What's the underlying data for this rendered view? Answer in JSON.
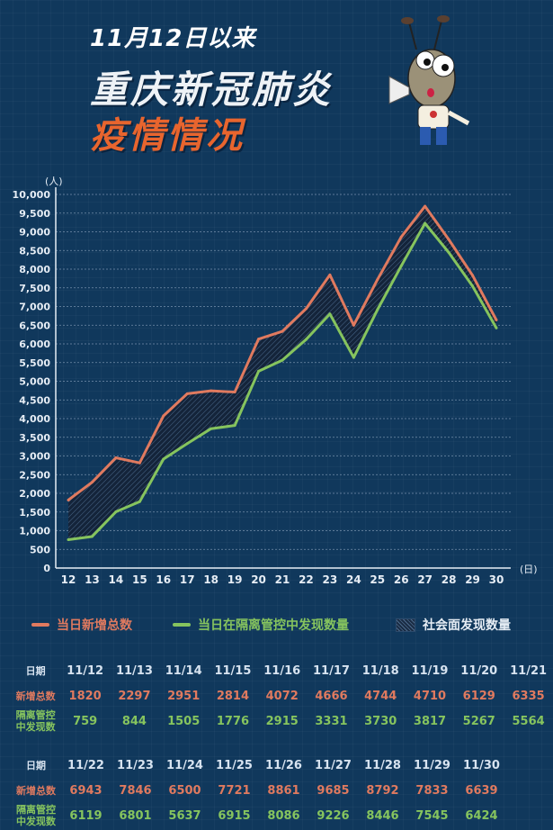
{
  "title": {
    "line1": "11月12日以来",
    "line2": "重庆新冠肺炎",
    "line3": "疫情情况"
  },
  "mascot_icon": "ant-mascot-with-megaphone",
  "colors": {
    "background": "#10385c",
    "total": "#e07a5f",
    "isolated": "#86c45e",
    "title_accent": "#e8652e"
  },
  "chart_data": {
    "type": "line",
    "ylabel": "(人)",
    "xlabel": "(日)",
    "ylim": [
      0,
      10000
    ],
    "yticks": [
      "0",
      "500",
      "1,000",
      "1,500",
      "2,000",
      "2,500",
      "3,000",
      "3,500",
      "4,000",
      "4,500",
      "5,000",
      "5,500",
      "6,000",
      "6,500",
      "7,000",
      "7,500",
      "8,000",
      "8,500",
      "9,000",
      "9,500",
      "10,000"
    ],
    "x": [
      "12",
      "13",
      "14",
      "15",
      "16",
      "17",
      "18",
      "19",
      "20",
      "21",
      "22",
      "23",
      "24",
      "25",
      "26",
      "27",
      "28",
      "29",
      "30"
    ],
    "grid": true,
    "legend_position": "bottom",
    "series": [
      {
        "name": "当日新增总数",
        "color": "#e07a5f",
        "values": [
          1820,
          2297,
          2951,
          2814,
          4072,
          4666,
          4744,
          4710,
          6129,
          6335,
          6943,
          7846,
          6500,
          7721,
          8861,
          9685,
          8792,
          7833,
          6639
        ]
      },
      {
        "name": "当日在隔离管控中发现数量",
        "color": "#86c45e",
        "values": [
          759,
          844,
          1505,
          1776,
          2915,
          3331,
          3730,
          3817,
          5267,
          5564,
          6119,
          6801,
          5637,
          6915,
          8086,
          9226,
          8446,
          7545,
          6424
        ]
      }
    ],
    "area_name": "社会面发现数量"
  },
  "tables": [
    {
      "date_label": "日期",
      "total_label": "新增总数",
      "isolated_label_1": "隔离管控",
      "isolated_label_2": "中发现数",
      "dates": [
        "11/12",
        "11/13",
        "11/14",
        "11/15",
        "11/16",
        "11/17",
        "11/18",
        "11/19",
        "11/20",
        "11/21"
      ],
      "total": [
        "1820",
        "2297",
        "2951",
        "2814",
        "4072",
        "4666",
        "4744",
        "4710",
        "6129",
        "6335"
      ],
      "isolated": [
        "759",
        "844",
        "1505",
        "1776",
        "2915",
        "3331",
        "3730",
        "3817",
        "5267",
        "5564"
      ]
    },
    {
      "date_label": "日期",
      "total_label": "新增总数",
      "isolated_label_1": "隔离管控",
      "isolated_label_2": "中发现数",
      "dates": [
        "11/22",
        "11/23",
        "11/24",
        "11/25",
        "11/26",
        "11/27",
        "11/28",
        "11/29",
        "11/30"
      ],
      "total": [
        "6943",
        "7846",
        "6500",
        "7721",
        "8861",
        "9685",
        "8792",
        "7833",
        "6639"
      ],
      "isolated": [
        "6119",
        "6801",
        "5637",
        "6915",
        "8086",
        "9226",
        "8446",
        "7545",
        "6424"
      ]
    }
  ]
}
